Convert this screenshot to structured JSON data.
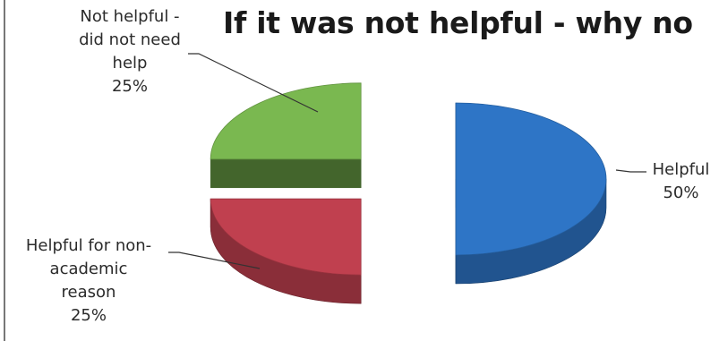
{
  "chart_data": {
    "type": "pie",
    "style": "3d-exploded",
    "title": "If it was not helpful - why no",
    "slices": [
      {
        "label": "Helpful",
        "value": 50,
        "percent_label": "50%",
        "color": "#2e75c6"
      },
      {
        "label": "Helpful for non-academic reason",
        "label_lines": [
          "Helpful for non-",
          "academic",
          "reason"
        ],
        "value": 25,
        "percent_label": "25%",
        "color": "#c0404f"
      },
      {
        "label": "Not helpful - did not need help",
        "label_lines": [
          "Not helpful -",
          "did not need",
          "help"
        ],
        "value": 25,
        "percent_label": "25%",
        "color": "#7ab850"
      }
    ]
  }
}
